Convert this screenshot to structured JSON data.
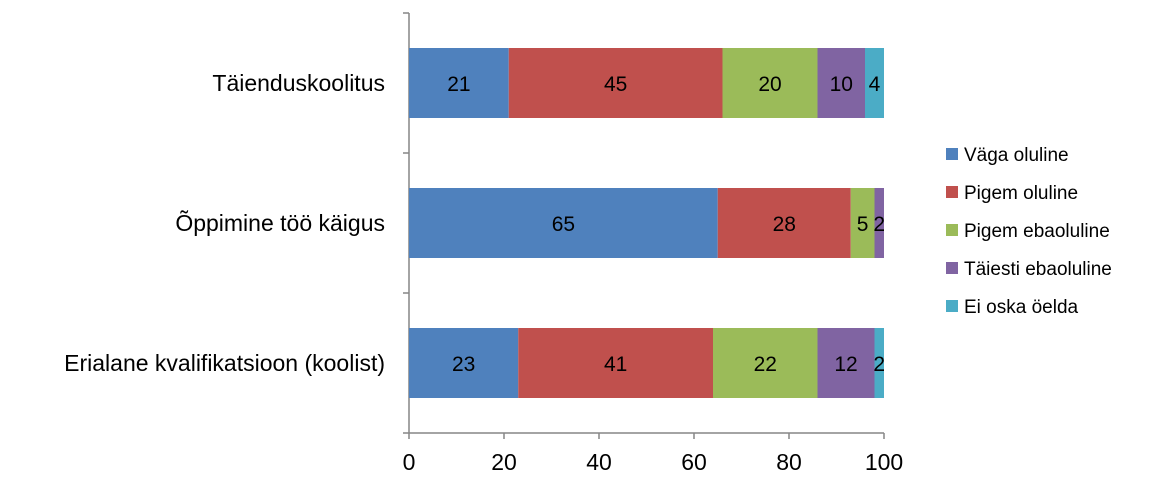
{
  "chart_data": {
    "type": "bar",
    "orientation": "horizontal",
    "stacked": true,
    "title": "",
    "xlabel": "",
    "ylabel": "",
    "xlim": [
      0,
      100
    ],
    "x_ticks": [
      0,
      20,
      40,
      60,
      80,
      100
    ],
    "grid": false,
    "legend_position": "right",
    "categories": [
      "Täienduskoolitus",
      "Õppimine töö käigus",
      "Erialane kvalifikatsioon (koolist)"
    ],
    "series": [
      {
        "name": "Väga oluline",
        "color": "#4F81BD",
        "values": [
          21,
          65,
          23
        ]
      },
      {
        "name": "Pigem oluline",
        "color": "#C0504D",
        "values": [
          45,
          28,
          41
        ]
      },
      {
        "name": "Pigem ebaoluline",
        "color": "#9BBB59",
        "values": [
          20,
          5,
          22
        ]
      },
      {
        "name": "Täiesti ebaoluline",
        "color": "#8064A2",
        "values": [
          10,
          2,
          12
        ]
      },
      {
        "name": "Ei oska öelda",
        "color": "#4BACC6",
        "values": [
          4,
          0,
          2
        ]
      }
    ]
  }
}
